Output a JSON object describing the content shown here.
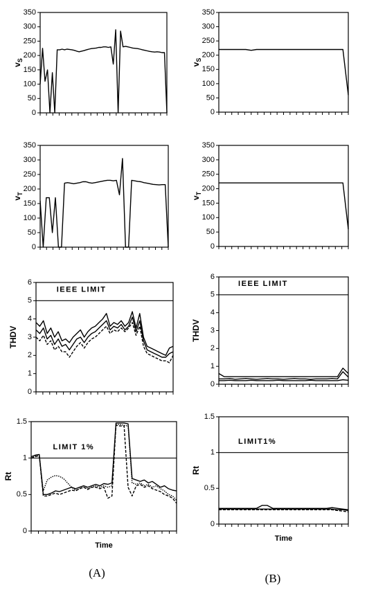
{
  "chart_data": [
    {
      "type": "line",
      "y_label": "v",
      "y_label_sub": "S",
      "ylim": [
        0,
        350
      ],
      "yticks": [
        0,
        50,
        100,
        150,
        200,
        250,
        300,
        350
      ],
      "series": [
        {
          "color": "#000",
          "values": [
            100,
            225,
            110,
            150,
            0,
            140,
            0,
            220,
            220,
            222,
            220,
            222,
            221,
            220,
            218,
            215,
            213,
            215,
            217,
            220,
            222,
            224,
            225,
            226,
            228,
            228,
            230,
            230,
            228,
            230,
            170,
            290,
            0,
            285,
            230,
            232,
            230,
            228,
            226,
            225,
            224,
            222,
            220,
            218,
            216,
            214,
            213,
            212,
            213,
            212,
            210,
            210,
            0
          ]
        }
      ]
    },
    {
      "type": "line",
      "y_label": "v",
      "y_label_sub": "T",
      "ylim": [
        0,
        350
      ],
      "yticks": [
        0,
        50,
        100,
        150,
        200,
        250,
        300,
        350
      ],
      "series": [
        {
          "color": "#000",
          "values": [
            160,
            0,
            170,
            170,
            50,
            170,
            0,
            0,
            220,
            222,
            220,
            218,
            220,
            222,
            225,
            225,
            222,
            220,
            222,
            224,
            226,
            228,
            230,
            230,
            228,
            230,
            180,
            305,
            0,
            0,
            230,
            228,
            226,
            225,
            222,
            220,
            218,
            216,
            215,
            214,
            215,
            215,
            0
          ]
        }
      ]
    },
    {
      "type": "line",
      "y_label": "THDV",
      "ylim": [
        0,
        6
      ],
      "yticks": [
        0,
        1,
        2,
        3,
        4,
        5,
        6
      ],
      "reference_lines": [
        {
          "value": 5,
          "label": "IEEE LIMIT"
        }
      ],
      "series": [
        {
          "color": "#000",
          "values": [
            3.8,
            3.6,
            3.9,
            3.2,
            3.5,
            3.0,
            3.3,
            2.8,
            2.9,
            2.7,
            3.0,
            3.2,
            3.4,
            3.0,
            3.3,
            3.5,
            3.6,
            3.8,
            4.0,
            4.3,
            3.6,
            3.8,
            3.7,
            3.9,
            3.6,
            3.8,
            4.4,
            3.5,
            4.3,
            3.0,
            2.5,
            2.4,
            2.3,
            2.2,
            2.1,
            2.0,
            2.4,
            2.5
          ]
        },
        {
          "color": "#000",
          "values": [
            3.4,
            3.2,
            3.5,
            2.9,
            3.1,
            2.6,
            2.9,
            2.5,
            2.6,
            2.3,
            2.6,
            2.9,
            3.0,
            2.7,
            3.0,
            3.2,
            3.3,
            3.5,
            3.7,
            3.9,
            3.4,
            3.6,
            3.5,
            3.7,
            3.4,
            3.6,
            4.1,
            3.3,
            3.9,
            2.8,
            2.3,
            2.2,
            2.1,
            2.0,
            1.9,
            1.9,
            2.1,
            2.2
          ]
        },
        {
          "color": "#000",
          "style": "dashed",
          "values": [
            3.0,
            2.8,
            3.1,
            2.6,
            2.8,
            2.3,
            2.5,
            2.2,
            2.2,
            1.9,
            2.2,
            2.5,
            2.7,
            2.4,
            2.7,
            2.9,
            3.0,
            3.2,
            3.4,
            3.6,
            3.2,
            3.4,
            3.3,
            3.5,
            3.3,
            3.5,
            3.8,
            3.1,
            3.6,
            2.5,
            2.1,
            2.0,
            1.9,
            1.8,
            1.7,
            1.7,
            1.6,
            2.0
          ]
        }
      ]
    },
    {
      "type": "line",
      "y_label": "Rt",
      "x_label": "Time",
      "ylim": [
        0,
        1.5
      ],
      "yticks": [
        0,
        0.5,
        1,
        1.5
      ],
      "reference_lines": [
        {
          "value": 1,
          "label": "LIMIT 1%"
        }
      ],
      "series": [
        {
          "color": "#000",
          "values": [
            1.02,
            1.04,
            1.05,
            0.5,
            0.5,
            0.52,
            0.55,
            0.54,
            0.56,
            0.58,
            0.6,
            0.58,
            0.6,
            0.62,
            0.6,
            0.62,
            0.64,
            0.62,
            0.65,
            0.64,
            0.66,
            1.48,
            1.48,
            1.48,
            1.47,
            0.72,
            0.7,
            0.68,
            0.7,
            0.66,
            0.68,
            0.64,
            0.6,
            0.62,
            0.58,
            0.56,
            0.55
          ]
        },
        {
          "color": "#000",
          "style": "dotted",
          "values": [
            1.0,
            1.03,
            1.04,
            0.55,
            0.7,
            0.74,
            0.76,
            0.75,
            0.72,
            0.66,
            0.6,
            0.56,
            0.58,
            0.6,
            0.58,
            0.6,
            0.62,
            0.6,
            0.62,
            0.6,
            0.62,
            1.46,
            1.46,
            1.45,
            1.44,
            0.66,
            0.64,
            0.66,
            0.62,
            0.64,
            0.6,
            0.62,
            0.58,
            0.55,
            0.5,
            0.48,
            0.42
          ]
        },
        {
          "color": "#000",
          "style": "dashed",
          "values": [
            1.0,
            1.02,
            1.03,
            0.48,
            0.48,
            0.5,
            0.52,
            0.5,
            0.52,
            0.54,
            0.56,
            0.55,
            0.58,
            0.6,
            0.57,
            0.6,
            0.6,
            0.58,
            0.6,
            0.45,
            0.48,
            1.45,
            1.44,
            1.44,
            0.6,
            0.48,
            0.62,
            0.64,
            0.6,
            0.62,
            0.58,
            0.56,
            0.54,
            0.5,
            0.48,
            0.45,
            0.38
          ]
        }
      ]
    },
    {
      "type": "line",
      "y_label": "v",
      "y_label_sub": "S",
      "ylim": [
        0,
        350
      ],
      "yticks": [
        0,
        50,
        100,
        150,
        200,
        250,
        300,
        350
      ],
      "series": [
        {
          "color": "#000",
          "values": [
            220,
            220,
            220,
            220,
            220,
            220,
            217,
            220,
            220,
            220,
            220,
            220,
            220,
            220,
            220,
            220,
            220,
            220,
            220,
            220,
            220,
            220,
            220,
            220,
            60
          ]
        }
      ]
    },
    {
      "type": "line",
      "y_label": "v",
      "y_label_sub": "T",
      "ylim": [
        0,
        350
      ],
      "yticks": [
        0,
        50,
        100,
        150,
        200,
        250,
        300,
        350
      ],
      "series": [
        {
          "color": "#000",
          "values": [
            220,
            220,
            220,
            220,
            220,
            220,
            220,
            220,
            220,
            220,
            220,
            220,
            220,
            220,
            220,
            220,
            220,
            220,
            220,
            220,
            220,
            220,
            220,
            220,
            60
          ]
        }
      ]
    },
    {
      "type": "line",
      "y_label": "THDV",
      "ylim": [
        0,
        6
      ],
      "yticks": [
        0,
        1,
        2,
        3,
        4,
        5,
        6
      ],
      "reference_lines": [
        {
          "value": 5,
          "label": "IEEE LIMIT"
        }
      ],
      "series": [
        {
          "color": "#000",
          "values": [
            0.6,
            0.42,
            0.42,
            0.42,
            0.42,
            0.42,
            0.42,
            0.42,
            0.42,
            0.42,
            0.42,
            0.42,
            0.42,
            0.42,
            0.42,
            0.42,
            0.42,
            0.42,
            0.42,
            0.42,
            0.42,
            0.42,
            0.42,
            0.9,
            0.6
          ]
        },
        {
          "color": "#000",
          "values": [
            0.3,
            0.3,
            0.32,
            0.28,
            0.3,
            0.32,
            0.3,
            0.28,
            0.3,
            0.32,
            0.3,
            0.3,
            0.28,
            0.3,
            0.32,
            0.3,
            0.3,
            0.28,
            0.3,
            0.3,
            0.3,
            0.32,
            0.3,
            0.7,
            0.4
          ]
        },
        {
          "color": "#000",
          "values": [
            0.2,
            0.2,
            0.22,
            0.2,
            0.2,
            0.2,
            0.22,
            0.2,
            0.2,
            0.2,
            0.2,
            0.22,
            0.2,
            0.2,
            0.2,
            0.2,
            0.2,
            0.22,
            0.2,
            0.2,
            0.2,
            0.2,
            0.2,
            0.25,
            0.22
          ]
        }
      ]
    },
    {
      "type": "line",
      "y_label": "Rt",
      "x_label": "Time",
      "ylim": [
        0,
        1.5
      ],
      "yticks": [
        0,
        0.5,
        1,
        1.5
      ],
      "reference_lines": [
        {
          "value": 1,
          "label": "LIMIT1%"
        }
      ],
      "series": [
        {
          "color": "#000",
          "values": [
            0.22,
            0.22,
            0.22,
            0.22,
            0.22,
            0.22,
            0.22,
            0.22,
            0.26,
            0.26,
            0.22,
            0.22,
            0.22,
            0.22,
            0.22,
            0.22,
            0.22,
            0.22,
            0.22,
            0.22,
            0.22,
            0.23,
            0.22,
            0.21,
            0.2
          ]
        },
        {
          "color": "#000",
          "values": [
            0.21,
            0.21,
            0.21,
            0.21,
            0.21,
            0.21,
            0.21,
            0.21,
            0.21,
            0.21,
            0.21,
            0.21,
            0.21,
            0.21,
            0.21,
            0.21,
            0.21,
            0.21,
            0.21,
            0.21,
            0.21,
            0.21,
            0.2,
            0.2,
            0.19
          ]
        },
        {
          "color": "#000",
          "style": "dashed",
          "values": [
            0.2,
            0.2,
            0.2,
            0.2,
            0.2,
            0.2,
            0.2,
            0.2,
            0.2,
            0.2,
            0.2,
            0.2,
            0.2,
            0.2,
            0.2,
            0.2,
            0.2,
            0.2,
            0.2,
            0.2,
            0.2,
            0.2,
            0.19,
            0.18,
            0.17
          ]
        }
      ]
    }
  ],
  "panel_labels": [
    "(A)",
    "(B)"
  ]
}
